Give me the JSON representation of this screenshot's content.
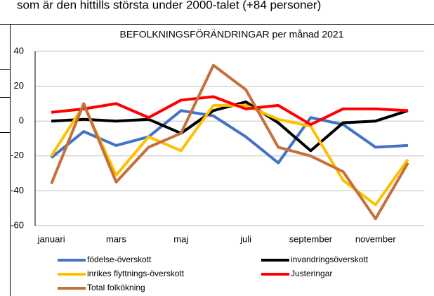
{
  "header_text": "som är den hittills största under 2000-talet (+84 personer)",
  "chart_data": {
    "type": "line",
    "title": "BEFOLKNINGSFÖRÄNDRINGAR per månad 2021",
    "categories": [
      "januari",
      null,
      "mars",
      null,
      "maj",
      null,
      "juli",
      null,
      "september",
      null,
      "november",
      null
    ],
    "ylim": [
      -60,
      40
    ],
    "yticks": [
      -60,
      -40,
      -20,
      0,
      20,
      40
    ],
    "grid": true,
    "series": [
      {
        "name": "födelse-överskott",
        "color": "#4472c4",
        "values": [
          -21,
          -6,
          -14,
          -9,
          6,
          3,
          -9,
          -24,
          2,
          -2,
          -15,
          -14
        ]
      },
      {
        "name": "invandringsöverskott",
        "color": "#000000",
        "values": [
          0,
          1,
          0,
          1,
          -7,
          6,
          11,
          -1,
          -17,
          -1,
          0,
          6
        ]
      },
      {
        "name": "inrikes flyttnings-överskott",
        "color": "#ffc000",
        "values": [
          -20,
          9,
          -31,
          -9,
          -17,
          9,
          9,
          1,
          -3,
          -34,
          -48,
          -22
        ]
      },
      {
        "name": "Justeringar",
        "color": "#ff0000",
        "values": [
          5,
          7,
          10,
          2,
          12,
          14,
          7,
          9,
          -2,
          7,
          7,
          6
        ]
      },
      {
        "name": "Total folkökning",
        "color": "#c5703a",
        "values": [
          -36,
          10,
          -35,
          -15,
          -7,
          32,
          18,
          -15,
          -20,
          -29,
          -56,
          -24
        ]
      }
    ]
  }
}
